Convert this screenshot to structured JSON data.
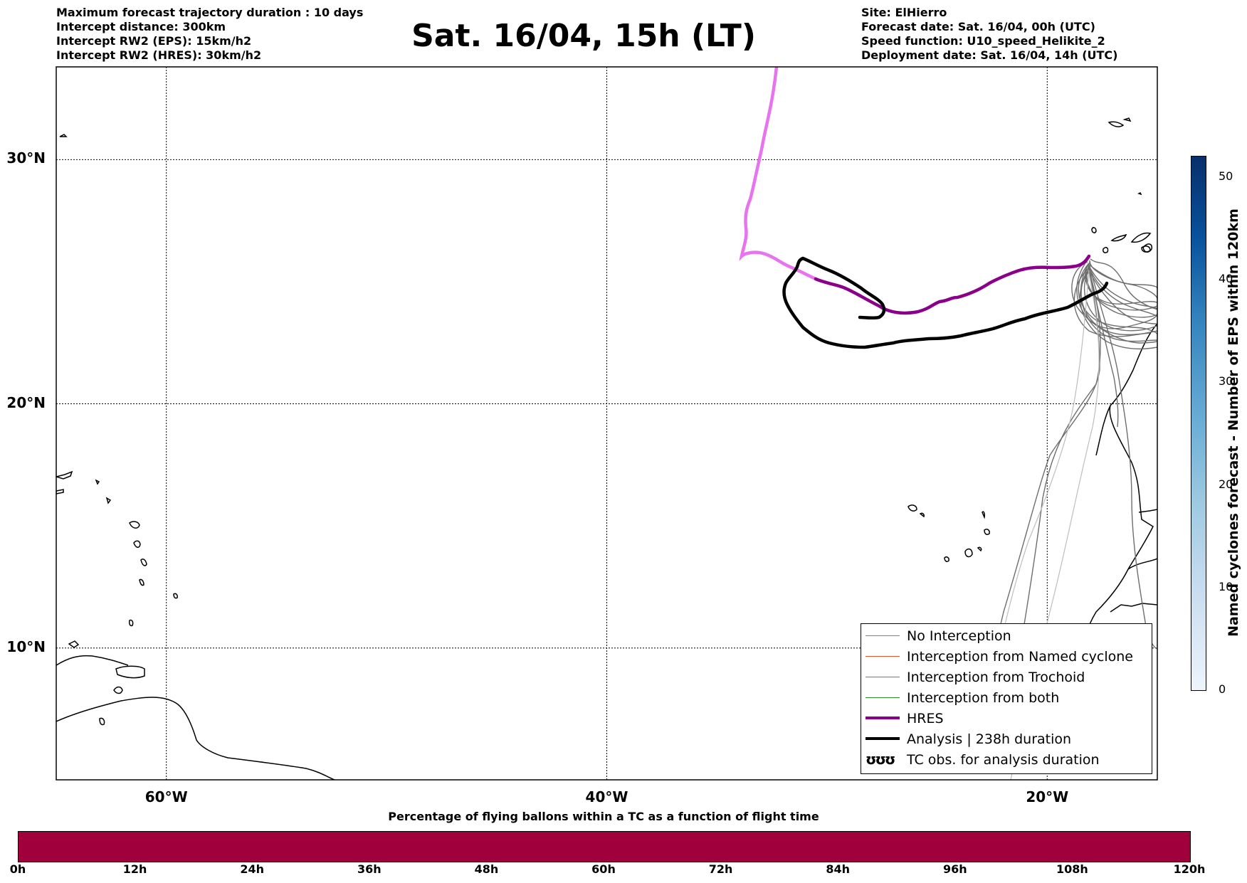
{
  "header_left": [
    "Maximum forecast trajectory duration : 10 days",
    "Intercept distance: 300km",
    "Intercept RW2 (EPS):  15km/h2",
    "Intercept RW2 (HRES): 30km/h2"
  ],
  "title": "Sat. 16/04, 15h (LT)",
  "header_right": [
    "Site: ElHierro",
    "Forecast date: Sat. 16/04, 00h (UTC)",
    "Speed function: U10_speed_Helikite_2",
    "Deployment date: Sat. 16/04, 14h (UTC)"
  ],
  "map": {
    "lon_range": [
      -65,
      -15
    ],
    "lat_range": [
      4.6,
      33.8
    ],
    "lat_labels": [
      "30°N",
      "20°N",
      "10°N"
    ],
    "lat_values": [
      30,
      20,
      10
    ],
    "lon_labels": [
      "60°W",
      "40°W",
      "20°W"
    ],
    "lon_values": [
      -60,
      -40,
      -20
    ],
    "grid": true
  },
  "legend": {
    "items": [
      {
        "label": "No Interception",
        "color": "#808080",
        "style": "thin"
      },
      {
        "label": "Interception from Named cyclone",
        "color": "#e8552a",
        "style": "thin"
      },
      {
        "label": "Interception from Trochoid",
        "color": "#808020",
        "style": "thin"
      },
      {
        "label": "Interception from both",
        "color": "#2a8a2a",
        "style": "thin"
      },
      {
        "label": "HRES",
        "color": "#8b008b",
        "style": "thick"
      },
      {
        "label": "Analysis | 238h duration",
        "color": "#000000",
        "style": "thick"
      },
      {
        "label": "TC obs. for analysis duration",
        "color": "#000000",
        "style": "symbol",
        "symbol": "ʊʊʊ"
      }
    ]
  },
  "right_colorbar": {
    "label": "Named cyclones forecast - Number of EPS within 120km",
    "ticks": [
      "0",
      "10",
      "20",
      "30",
      "40",
      "50"
    ],
    "tick_values": [
      0,
      10,
      20,
      30,
      40,
      50
    ],
    "range": [
      0,
      52
    ]
  },
  "bottom_colorbar": {
    "title": "Percentage of flying ballons within a TC as a function of flight time",
    "ticks": [
      "0h",
      "12h",
      "24h",
      "36h",
      "48h",
      "60h",
      "72h",
      "84h",
      "96h",
      "108h",
      "120h"
    ],
    "color": "#a0003c"
  }
}
